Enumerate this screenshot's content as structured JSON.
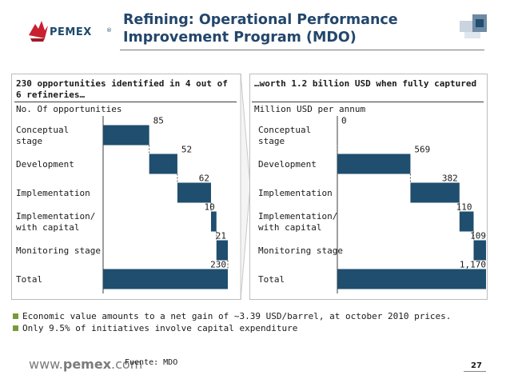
{
  "header": {
    "logo_text": "PEMEX",
    "logo_mark": "®",
    "title_line1": "Refining: Operational Performance",
    "title_line2": "Improvement Program (MDO)"
  },
  "colors": {
    "bar": "#1f4e6e",
    "accent": "#23466b",
    "bullet": "#7a9a3a"
  },
  "chart_data": [
    {
      "type": "bar",
      "subtype": "waterfall",
      "title": "230 opportunities identified in 4 out of 6 refineries…",
      "ylabel": "No. Of opportunities",
      "categories": [
        "Conceptual stage",
        "Development",
        "Implementation",
        "Implementation/ with capital",
        "Monitoring stage",
        "Total"
      ],
      "category_lines": [
        [
          "Conceptual",
          "stage"
        ],
        [
          "Development"
        ],
        [
          "Implementation"
        ],
        [
          "Implementation/",
          "with capital"
        ],
        [
          "Monitoring stage"
        ],
        [
          "Total"
        ]
      ],
      "values": [
        85,
        52,
        62,
        10,
        21,
        230
      ],
      "labels": [
        "85",
        "52",
        "62",
        "10",
        "21",
        "230"
      ],
      "is_total": [
        false,
        false,
        false,
        false,
        false,
        true
      ],
      "xlim": [
        0,
        230
      ]
    },
    {
      "type": "bar",
      "subtype": "waterfall",
      "title": "…worth 1.2 billion USD when fully captured",
      "ylabel": "Million USD per annum",
      "categories": [
        "Conceptual stage",
        "Development",
        "Implementation",
        "Implementation/ with capital",
        "Monitoring stage",
        "Total"
      ],
      "category_lines": [
        [
          "Conceptual",
          "stage"
        ],
        [
          "Development"
        ],
        [
          "Implementation"
        ],
        [
          "Implementation/",
          "with capital"
        ],
        [
          "Monitoring stage"
        ],
        [
          "Total"
        ]
      ],
      "values": [
        0,
        569,
        382,
        110,
        109,
        1170
      ],
      "labels": [
        "0",
        "569",
        "382",
        "110",
        "109",
        "1,170"
      ],
      "is_total": [
        false,
        false,
        false,
        false,
        false,
        true
      ],
      "xlim": [
        0,
        1170
      ]
    }
  ],
  "bullets": [
    "Economic value amounts to a net gain of ~3.39 USD/barrel, at october 2010 prices.",
    "Only 9.5% of initiatives involve capital expenditure"
  ],
  "footer": {
    "url_prefix": "www.",
    "url_brand": "pemex",
    "url_suffix": ".com",
    "source": "Fuente: MDO",
    "page_number": "27"
  }
}
